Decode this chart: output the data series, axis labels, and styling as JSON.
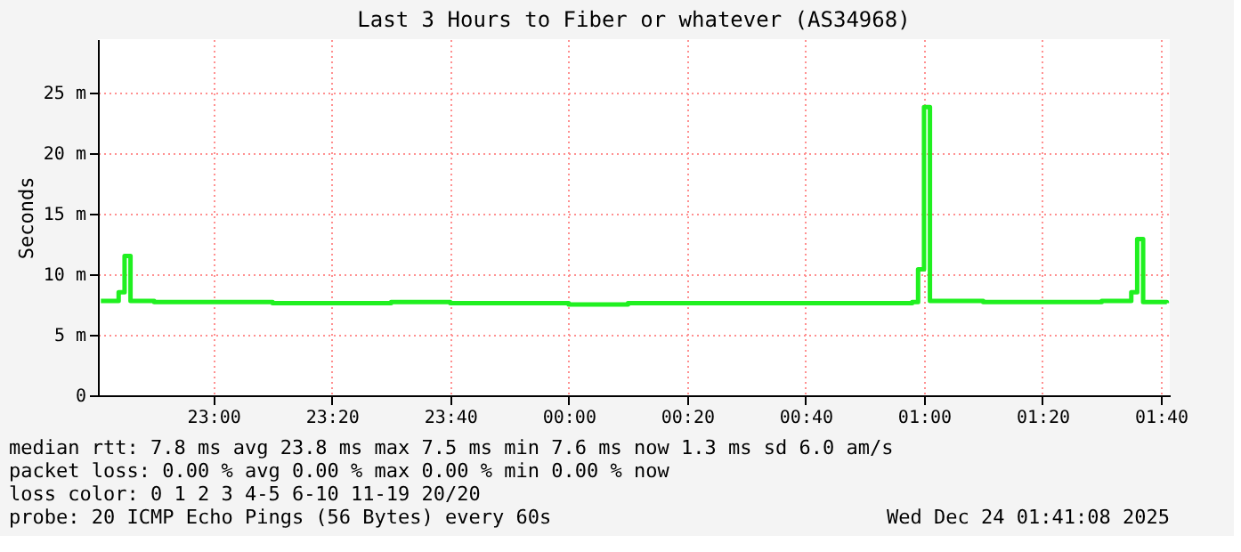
{
  "chart_data": {
    "type": "step",
    "title": "Last 3 Hours to Fiber or whatever (AS34968)",
    "ylabel": "Seconds",
    "x": [
      "2025-12-23T22:41",
      "2025-12-23T22:44",
      "2025-12-23T22:45",
      "2025-12-23T22:46",
      "2025-12-23T22:50",
      "2025-12-23T23:00",
      "2025-12-23T23:10",
      "2025-12-23T23:20",
      "2025-12-23T23:30",
      "2025-12-23T23:40",
      "2025-12-23T23:50",
      "2025-12-24T00:00",
      "2025-12-24T00:10",
      "2025-12-24T00:20",
      "2025-12-24T00:30",
      "2025-12-24T00:40",
      "2025-12-24T00:50",
      "2025-12-24T00:58",
      "2025-12-24T00:59",
      "2025-12-24T01:00",
      "2025-12-24T01:01",
      "2025-12-24T01:10",
      "2025-12-24T01:20",
      "2025-12-24T01:30",
      "2025-12-24T01:35",
      "2025-12-24T01:36",
      "2025-12-24T01:37",
      "2025-12-24T01:41"
    ],
    "series": [
      {
        "color": "#20f020",
        "values": [
          7.8,
          8.5,
          11.5,
          7.8,
          7.7,
          7.7,
          7.6,
          7.6,
          7.7,
          7.6,
          7.6,
          7.5,
          7.6,
          7.6,
          7.6,
          7.6,
          7.6,
          7.7,
          10.4,
          23.8,
          7.8,
          7.7,
          7.7,
          7.8,
          8.5,
          12.9,
          7.7,
          7.6
        ]
      }
    ],
    "xlim": [
      "2025-12-23T22:40:30",
      "2025-12-24T01:41:30"
    ],
    "xticks": [
      {
        "value": "2025-12-23T23:00",
        "label": "23:00"
      },
      {
        "value": "2025-12-23T23:20",
        "label": "23:20"
      },
      {
        "value": "2025-12-23T23:40",
        "label": "23:40"
      },
      {
        "value": "2025-12-24T00:00",
        "label": "00:00"
      },
      {
        "value": "2025-12-24T00:20",
        "label": "00:20"
      },
      {
        "value": "2025-12-24T00:40",
        "label": "00:40"
      },
      {
        "value": "2025-12-24T01:00",
        "label": "01:00"
      },
      {
        "value": "2025-12-24T01:20",
        "label": "01:20"
      },
      {
        "value": "2025-12-24T01:40",
        "label": "01:40"
      }
    ],
    "ylim": [
      0,
      29.4
    ],
    "yticks": [
      0,
      {
        "value": 5,
        "label": "5 m"
      },
      {
        "value": 10,
        "label": "10 m"
      },
      {
        "value": 15,
        "label": "15 m"
      },
      {
        "value": 20,
        "label": "20 m"
      },
      {
        "value": 25,
        "label": "25 m"
      }
    ],
    "grid": true,
    "annotations": [
      "median rtt:  7.8 ms avg  23.8 ms max  7.5 ms min  7.6 ms now  1.3 ms sd  6.0   am/s",
      "packet loss: 0.00 % avg  0.00 % max  0.00 % min  0.00 % now",
      "loss color:  0  1  2  3  4-5  6-10  11-19  20/20",
      "probe:       20 ICMP Echo Pings (56 Bytes) every 60s",
      "Wed Dec 24 01:41:08 2025"
    ]
  }
}
